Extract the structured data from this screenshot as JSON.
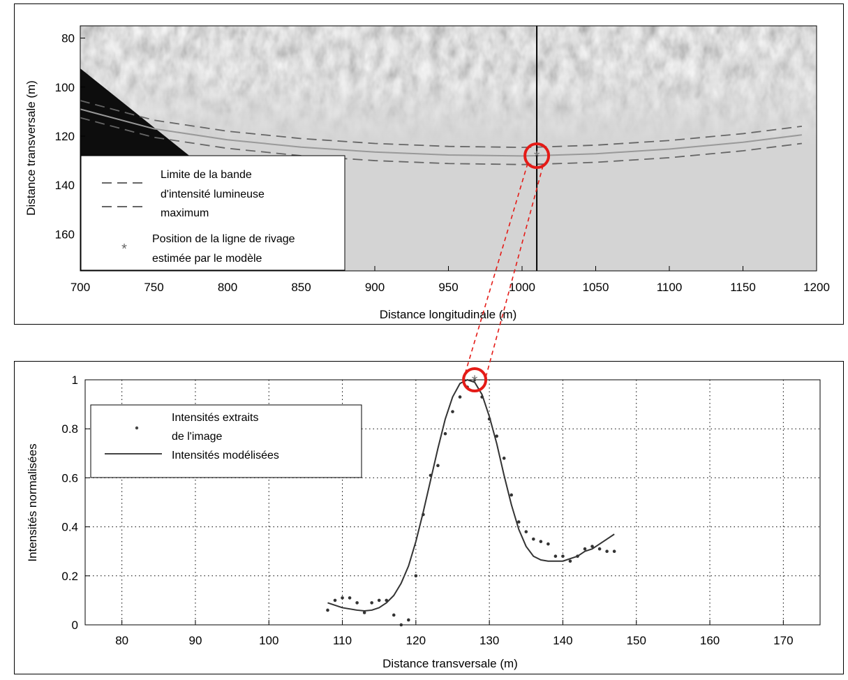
{
  "chart_data": [
    {
      "type": "heatmap",
      "xlabel": "Distance longitudinale (m)",
      "ylabel": "Distance transversale (m)",
      "xlim": [
        700,
        1200
      ],
      "ylim": [
        175,
        75
      ],
      "y_axis_inverted": true,
      "x_ticks": [
        "700",
        "750",
        "800",
        "850",
        "900",
        "950",
        "1000",
        "1050",
        "1100",
        "1150",
        "1200"
      ],
      "y_ticks": [
        "80",
        "100",
        "120",
        "140",
        "160"
      ],
      "vertical_marker_x": 1010,
      "highlight_point": {
        "x": 1010,
        "y": 128
      },
      "shoreline_curve": {
        "x": [
          700,
          750,
          800,
          850,
          900,
          950,
          1000,
          1010,
          1050,
          1100,
          1150,
          1190
        ],
        "y": [
          109,
          117,
          121.5,
          124.5,
          126.5,
          127.7,
          128.1,
          128,
          127.2,
          125.3,
          122.5,
          119.5
        ]
      },
      "band_offset": 3.5,
      "legend": {
        "position": "bottom-left",
        "band_label_lines": [
          "Limite de la bande",
          "d'intensité lumineuse",
          "maximum"
        ],
        "shoreline_label_lines": [
          "Position de la ligne de rivage",
          "estimée par le modèle"
        ]
      },
      "grid": false
    },
    {
      "type": "line",
      "xlabel": "Distance transversale (m)",
      "ylabel": "Intensités normalisées",
      "xlim": [
        75,
        175
      ],
      "ylim": [
        0,
        1
      ],
      "x_ticks": [
        "80",
        "90",
        "100",
        "110",
        "120",
        "130",
        "140",
        "150",
        "160",
        "170"
      ],
      "y_ticks": [
        "0",
        "0.2",
        "0.4",
        "0.6",
        "0.8",
        "1"
      ],
      "grid": true,
      "highlight_point": {
        "x": 128,
        "y": 1
      },
      "series": [
        {
          "name_lines": [
            "Intensités extraits",
            "de l'image"
          ],
          "style": "dots",
          "x": [
            108,
            109,
            110,
            111,
            112,
            113,
            114,
            115,
            116,
            117,
            118,
            119,
            120,
            121,
            122,
            123,
            124,
            125,
            126,
            127,
            128,
            129,
            130,
            131,
            132,
            133,
            134,
            135,
            136,
            137,
            138,
            139,
            140,
            141,
            142,
            143,
            144,
            145,
            146,
            147
          ],
          "y": [
            0.06,
            0.1,
            0.11,
            0.11,
            0.09,
            0.05,
            0.09,
            0.1,
            0.1,
            0.04,
            0.0,
            0.02,
            0.2,
            0.45,
            0.61,
            0.65,
            0.78,
            0.87,
            0.93,
            0.97,
            1.0,
            0.93,
            0.84,
            0.77,
            0.68,
            0.53,
            0.42,
            0.38,
            0.35,
            0.34,
            0.33,
            0.28,
            0.28,
            0.26,
            0.28,
            0.31,
            0.32,
            0.31,
            0.3,
            0.3
          ]
        },
        {
          "name_lines": [
            "Intensités modélisées"
          ],
          "style": "line",
          "x": [
            108,
            109,
            110,
            111,
            112,
            113,
            114,
            115,
            116,
            117,
            118,
            119,
            120,
            121,
            122,
            123,
            124,
            125,
            126,
            127,
            128,
            129,
            130,
            131,
            132,
            133,
            134,
            135,
            136,
            137,
            138,
            139,
            140,
            141,
            142,
            143,
            144,
            145,
            146,
            147
          ],
          "y": [
            0.09,
            0.08,
            0.07,
            0.065,
            0.06,
            0.057,
            0.06,
            0.07,
            0.09,
            0.12,
            0.17,
            0.24,
            0.34,
            0.46,
            0.59,
            0.72,
            0.84,
            0.93,
            0.985,
            1.0,
            0.99,
            0.94,
            0.85,
            0.74,
            0.61,
            0.49,
            0.39,
            0.32,
            0.28,
            0.265,
            0.26,
            0.26,
            0.26,
            0.27,
            0.28,
            0.3,
            0.31,
            0.33,
            0.35,
            0.37
          ]
        }
      ]
    }
  ],
  "connector": {
    "color": "#e41b17"
  }
}
